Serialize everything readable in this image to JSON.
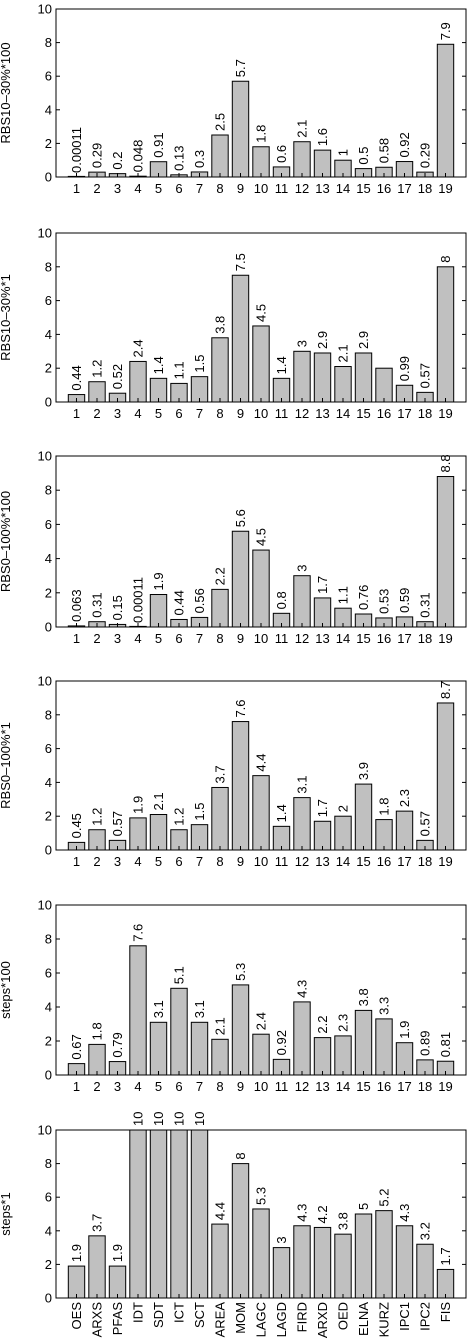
{
  "chart_data": [
    {
      "type": "bar",
      "ylabel": "RBS10–30%*100",
      "ylim": [
        0,
        10
      ],
      "yticks": [
        "0",
        "2",
        "4",
        "6",
        "8",
        "10"
      ],
      "categories": [
        "1",
        "2",
        "3",
        "4",
        "5",
        "6",
        "7",
        "8",
        "9",
        "10",
        "11",
        "12",
        "13",
        "14",
        "15",
        "16",
        "17",
        "18",
        "19"
      ],
      "values": [
        0.00011,
        0.29,
        0.2,
        0.048,
        0.91,
        0.13,
        0.3,
        2.5,
        5.7,
        1.8,
        0.6,
        2.1,
        1.6,
        1,
        0.5,
        0.58,
        0.92,
        0.29,
        7.9
      ],
      "labels": [
        "0.00011",
        "0.29",
        "0.2",
        "0.048",
        "0.91",
        "0.13",
        "0.3",
        "2.5",
        "5.7",
        "1.8",
        "0.6",
        "2.1",
        "1.6",
        "1",
        "0.5",
        "0.58",
        "0.92",
        "0.29",
        "7.9"
      ]
    },
    {
      "type": "bar",
      "ylabel": "RBS10–30%*1",
      "ylim": [
        0,
        10
      ],
      "yticks": [
        "0",
        "2",
        "4",
        "6",
        "8",
        "10"
      ],
      "categories": [
        "1",
        "2",
        "3",
        "4",
        "5",
        "6",
        "7",
        "8",
        "9",
        "10",
        "11",
        "12",
        "13",
        "14",
        "15",
        "16",
        "17",
        "18",
        "19"
      ],
      "values": [
        0.44,
        1.2,
        0.52,
        2.4,
        1.4,
        1.1,
        1.5,
        3.8,
        7.5,
        4.5,
        1.4,
        3,
        2.9,
        2.1,
        2.9,
        2,
        0.99,
        0.57,
        8
      ],
      "labels": [
        "0.44",
        "1.2",
        "0.52",
        "2.4",
        "1.4",
        "1.1",
        "1.5",
        "3.8",
        "7.5",
        "4.5",
        "1.4",
        "3",
        "2.9",
        "2.1",
        "2.9",
        "",
        "0.99",
        "0.57",
        "8"
      ]
    },
    {
      "type": "bar",
      "ylabel": "RBS0–100%*100",
      "ylim": [
        0,
        10
      ],
      "yticks": [
        "0",
        "2",
        "4",
        "6",
        "8",
        "10"
      ],
      "categories": [
        "1",
        "2",
        "3",
        "4",
        "5",
        "6",
        "7",
        "8",
        "9",
        "10",
        "11",
        "12",
        "13",
        "14",
        "15",
        "16",
        "17",
        "18",
        "19"
      ],
      "values": [
        0.063,
        0.31,
        0.15,
        0.00011,
        1.9,
        0.44,
        0.56,
        2.2,
        5.6,
        4.5,
        0.8,
        3,
        1.7,
        1.1,
        0.76,
        0.53,
        0.59,
        0.31,
        8.8
      ],
      "labels": [
        "0.063",
        "0.31",
        "0.15",
        "0.00011",
        "1.9",
        "0.44",
        "0.56",
        "2.2",
        "5.6",
        "4.5",
        "0.8",
        "3",
        "1.7",
        "1.1",
        "0.76",
        "0.53",
        "0.59",
        "0.31",
        "8.8"
      ]
    },
    {
      "type": "bar",
      "ylabel": "RBS0–100%*1",
      "ylim": [
        0,
        10
      ],
      "yticks": [
        "0",
        "2",
        "4",
        "6",
        "8",
        "10"
      ],
      "categories": [
        "1",
        "2",
        "3",
        "4",
        "5",
        "6",
        "7",
        "8",
        "9",
        "10",
        "11",
        "12",
        "13",
        "14",
        "15",
        "16",
        "17",
        "18",
        "19"
      ],
      "values": [
        0.45,
        1.2,
        0.57,
        1.9,
        2.1,
        1.2,
        1.5,
        3.7,
        7.6,
        4.4,
        1.4,
        3.1,
        1.7,
        2,
        3.9,
        1.8,
        2.3,
        0.57,
        8.7
      ],
      "labels": [
        "0.45",
        "1.2",
        "0.57",
        "1.9",
        "2.1",
        "1.2",
        "1.5",
        "3.7",
        "7.6",
        "4.4",
        "1.4",
        "3.1",
        "1.7",
        "2",
        "3.9",
        "1.8",
        "2.3",
        "0.57",
        "8.7"
      ]
    },
    {
      "type": "bar",
      "ylabel": "steps*100",
      "ylim": [
        0,
        10
      ],
      "yticks": [
        "0",
        "2",
        "4",
        "6",
        "8",
        "10"
      ],
      "categories": [
        "1",
        "2",
        "3",
        "4",
        "5",
        "6",
        "7",
        "8",
        "9",
        "10",
        "11",
        "12",
        "13",
        "14",
        "15",
        "16",
        "17",
        "18",
        "19"
      ],
      "values": [
        0.67,
        1.8,
        0.79,
        7.6,
        3.1,
        5.1,
        3.1,
        2.1,
        5.3,
        2.4,
        0.92,
        4.3,
        2.2,
        2.3,
        3.8,
        3.3,
        1.9,
        0.89,
        0.81
      ],
      "labels": [
        "0.67",
        "1.8",
        "0.79",
        "7.6",
        "3.1",
        "5.1",
        "3.1",
        "2.1",
        "5.3",
        "2.4",
        "0.92",
        "4.3",
        "2.2",
        "2.3",
        "3.8",
        "3.3",
        "1.9",
        "0.89",
        "0.81"
      ]
    },
    {
      "type": "bar",
      "ylabel": "steps*1",
      "ylim": [
        0,
        10
      ],
      "yticks": [
        "0",
        "2",
        "4",
        "6",
        "8",
        "10"
      ],
      "categories": [
        "OES",
        "ARXS",
        "PFAS",
        "IDT",
        "SDT",
        "ICT",
        "SCT",
        "AREA",
        "MOM",
        "LAGC",
        "LAGD",
        "FIRD",
        "ARXD",
        "OED",
        "ELNA",
        "KURZ",
        "IPC1",
        "IPC2",
        "FIS"
      ],
      "values": [
        1.9,
        3.7,
        1.9,
        10,
        10,
        10,
        10,
        4.4,
        8,
        5.3,
        3,
        4.3,
        4.2,
        3.8,
        5,
        5.2,
        4.3,
        3.2,
        1.7
      ],
      "labels": [
        "1.9",
        "3.7",
        "1.9",
        "10",
        "10",
        "10",
        "10",
        "4.4",
        "8",
        "5.3",
        "3",
        "4.3",
        "4.2",
        "3.8",
        "5",
        "5.2",
        "4.3",
        "3.2",
        "1.7"
      ]
    }
  ]
}
